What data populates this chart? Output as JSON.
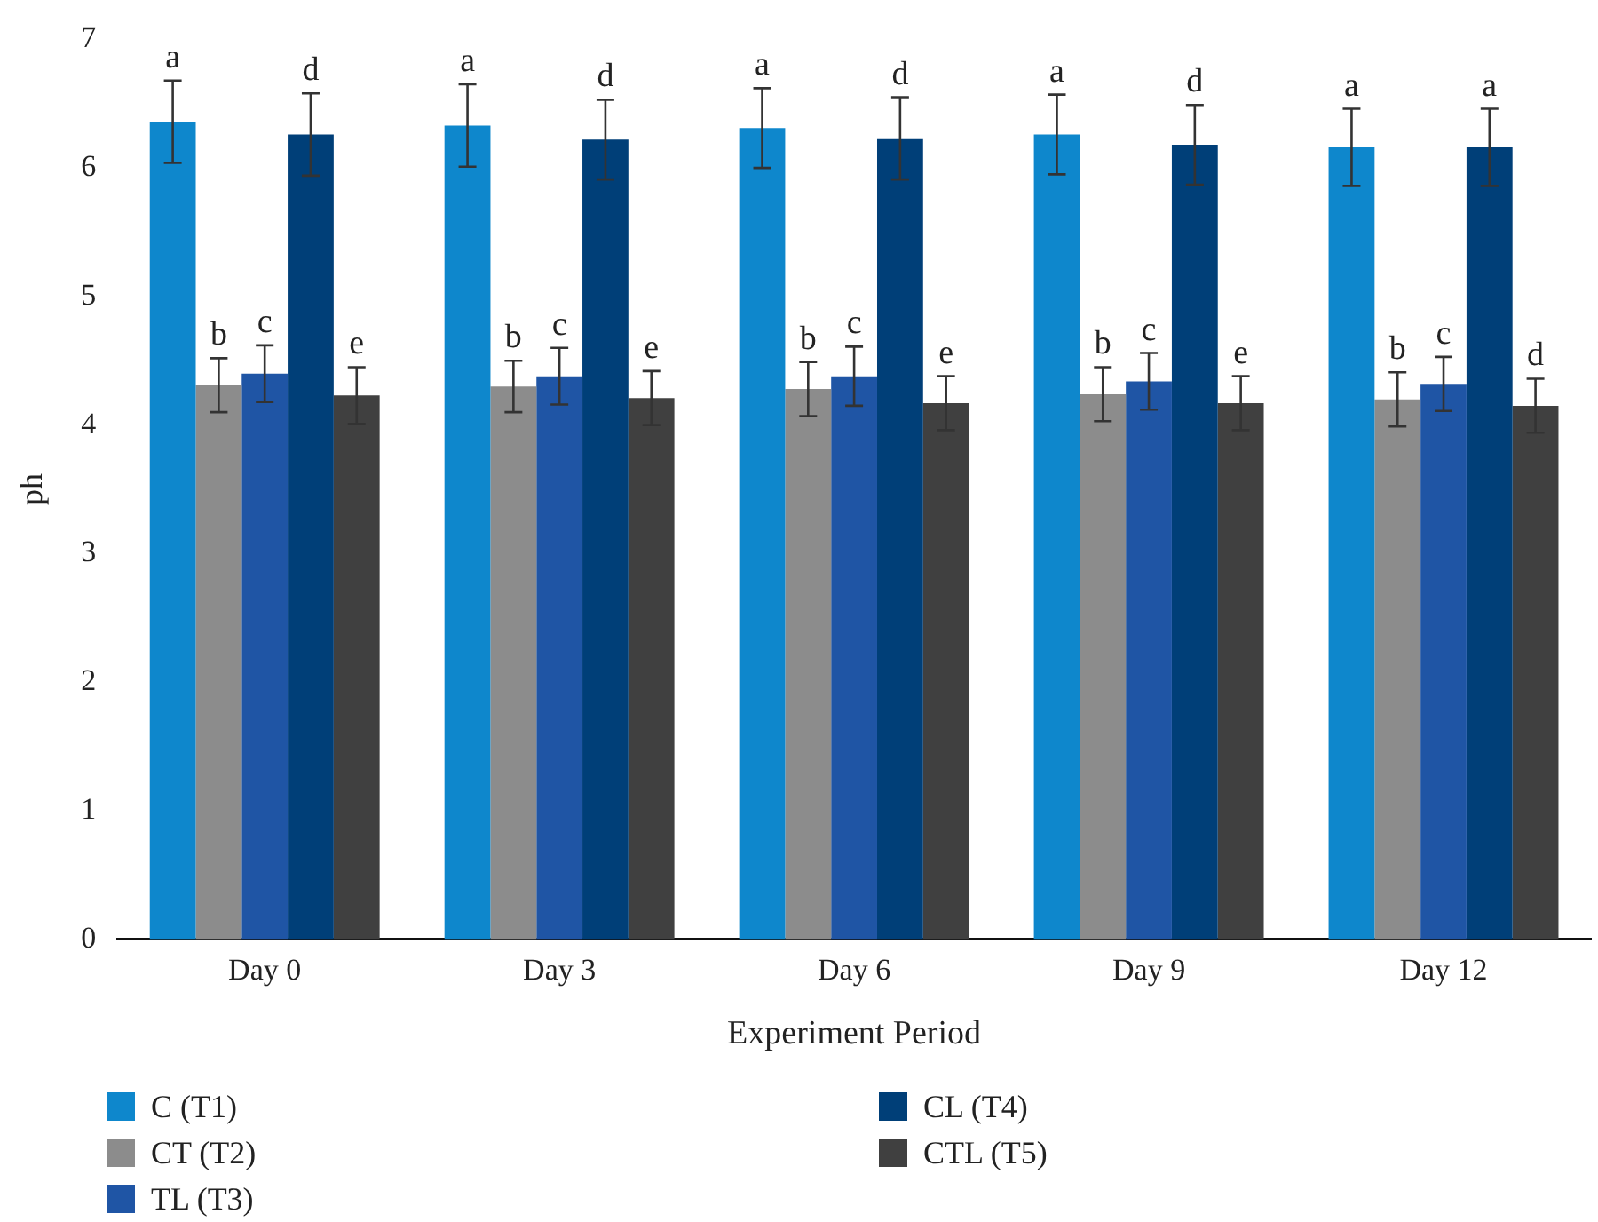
{
  "chart_data": {
    "type": "bar",
    "xlabel": "Experiment Period",
    "ylabel": "ph",
    "categories": [
      "Day 0",
      "Day 3",
      "Day 6",
      "Day 9",
      "Day 12"
    ],
    "ylim": [
      0,
      7
    ],
    "yticks": [
      0,
      1,
      2,
      3,
      4,
      5,
      6,
      7
    ],
    "grid": false,
    "legend": "bottom",
    "series": [
      {
        "name": "C (T1)",
        "color": "#0e87cc",
        "values": [
          6.36,
          6.33,
          6.31,
          6.26,
          6.16
        ],
        "errors": [
          0.32,
          0.32,
          0.31,
          0.31,
          0.3
        ],
        "value_labels": [
          "a",
          "a",
          "a",
          "a",
          "a"
        ]
      },
      {
        "name": "CT (T2)",
        "color": "#8c8c8c",
        "values": [
          4.31,
          4.3,
          4.28,
          4.24,
          4.2
        ],
        "errors": [
          0.21,
          0.2,
          0.21,
          0.21,
          0.21
        ],
        "value_labels": [
          "b",
          "b",
          "b",
          "b",
          "b"
        ]
      },
      {
        "name": "TL (T3)",
        "color": "#1f55a5",
        "values": [
          4.4,
          4.38,
          4.38,
          4.34,
          4.32
        ],
        "errors": [
          0.22,
          0.22,
          0.23,
          0.22,
          0.21
        ],
        "value_labels": [
          "c",
          "c",
          "c",
          "c",
          "c"
        ]
      },
      {
        "name": "CL (T4)",
        "color": "#003f78",
        "values": [
          6.26,
          6.22,
          6.23,
          6.18,
          6.16
        ],
        "errors": [
          0.32,
          0.31,
          0.32,
          0.31,
          0.3
        ],
        "value_labels": [
          "d",
          "d",
          "d",
          "d",
          "a"
        ]
      },
      {
        "name": "CTL (T5)",
        "color": "#404040",
        "values": [
          4.23,
          4.21,
          4.17,
          4.17,
          4.15
        ],
        "errors": [
          0.22,
          0.21,
          0.21,
          0.21,
          0.21
        ],
        "value_labels": [
          "e",
          "e",
          "e",
          "e",
          "d"
        ]
      }
    ]
  }
}
